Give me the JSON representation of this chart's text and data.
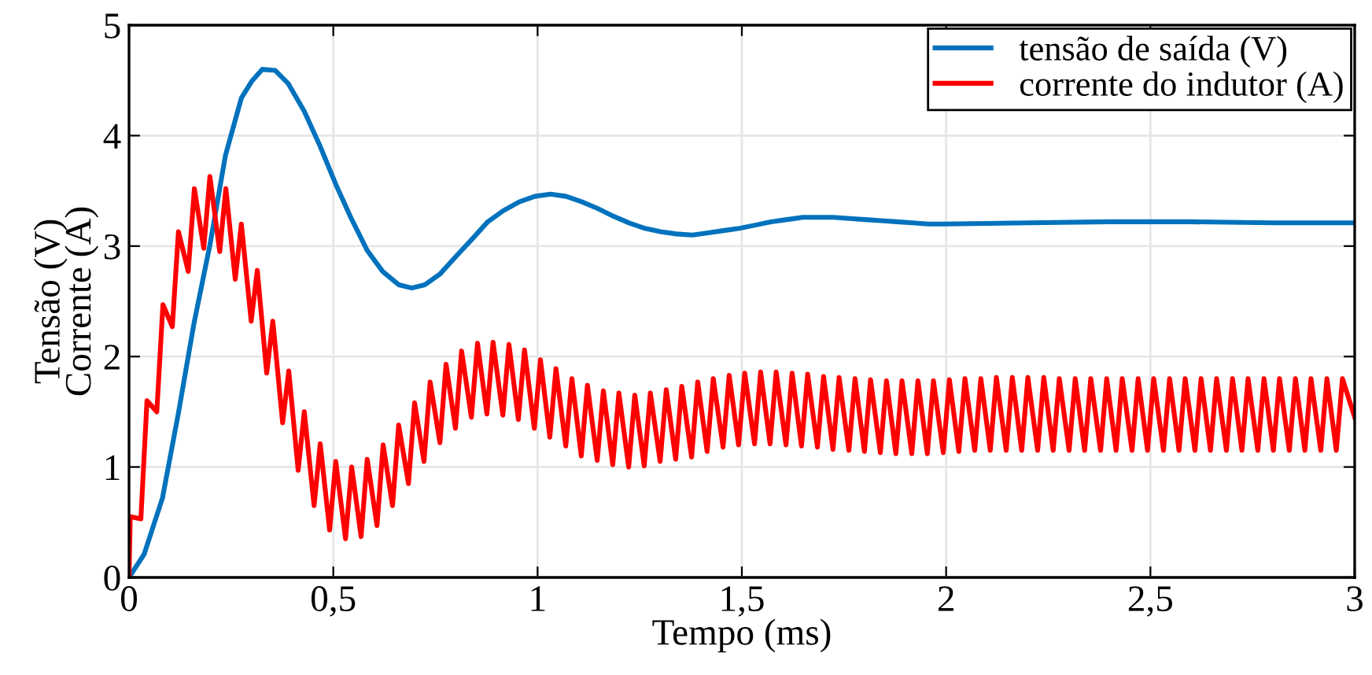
{
  "chart_data": {
    "type": "line",
    "xlabel": "Tempo (ms)",
    "ylabel": "Tensão (V)\nCorrente (A)",
    "xlim": [
      0,
      3
    ],
    "ylim": [
      0,
      5
    ],
    "xticks": [
      0,
      {
        "value": 0.5,
        "label": "0,5"
      },
      1,
      {
        "value": 1.5,
        "label": "1,5"
      },
      2,
      {
        "value": 2.5,
        "label": "2,5"
      },
      3
    ],
    "yticks": [
      0,
      1,
      2,
      3,
      4,
      5
    ],
    "grid": true,
    "legend": "top right",
    "line_style": "solid",
    "marker": "none",
    "series": [
      {
        "name": "tensão de saída (V)",
        "color": "#0072bd",
        "x": [
          0,
          0.037,
          0.082,
          0.121,
          0.159,
          0.198,
          0.236,
          0.275,
          0.3,
          0.326,
          0.358,
          0.39,
          0.429,
          0.467,
          0.506,
          0.544,
          0.583,
          0.621,
          0.66,
          0.692,
          0.724,
          0.762,
          0.801,
          0.839,
          0.878,
          0.916,
          0.955,
          0.993,
          1.032,
          1.07,
          1.109,
          1.147,
          1.186,
          1.224,
          1.263,
          1.301,
          1.34,
          1.379,
          1.417,
          1.455,
          1.494,
          1.533,
          1.571,
          1.61,
          1.648,
          1.687,
          1.725,
          1.764,
          1.802,
          1.841,
          1.879,
          1.918,
          1.956,
          1.995,
          2.2,
          2.4,
          2.6,
          2.8,
          3.0
        ],
        "values": [
          0,
          0.21,
          0.72,
          1.49,
          2.3,
          3.01,
          3.82,
          4.34,
          4.49,
          4.6,
          4.59,
          4.47,
          4.22,
          3.91,
          3.56,
          3.25,
          2.96,
          2.77,
          2.65,
          2.62,
          2.65,
          2.75,
          2.91,
          3.06,
          3.22,
          3.32,
          3.4,
          3.45,
          3.47,
          3.45,
          3.4,
          3.34,
          3.27,
          3.21,
          3.16,
          3.13,
          3.11,
          3.1,
          3.12,
          3.14,
          3.16,
          3.19,
          3.22,
          3.24,
          3.26,
          3.26,
          3.26,
          3.25,
          3.24,
          3.23,
          3.22,
          3.21,
          3.2,
          3.2,
          3.21,
          3.22,
          3.22,
          3.21,
          3.21
        ]
      },
      {
        "name": "corrente do indutor (A)",
        "color": "#ff0000",
        "x": [
          0,
          0.003,
          0.029,
          0.044,
          0.068,
          0.083,
          0.106,
          0.121,
          0.145,
          0.16,
          0.183,
          0.198,
          0.222,
          0.237,
          0.26,
          0.275,
          0.299,
          0.314,
          0.337,
          0.352,
          0.376,
          0.391,
          0.414,
          0.429,
          0.453,
          0.468,
          0.491,
          0.506,
          0.53,
          0.545,
          0.568,
          0.583,
          0.607,
          0.622,
          0.645,
          0.66,
          0.684,
          0.699,
          0.722,
          0.737,
          0.761,
          0.776,
          0.799,
          0.814,
          0.838,
          0.853,
          0.876,
          0.891,
          0.915,
          0.93,
          0.953,
          0.968,
          0.992,
          1.007,
          1.03,
          1.045,
          1.069,
          1.084,
          1.107,
          1.122,
          1.146,
          1.161,
          1.184,
          1.199,
          1.223,
          1.238,
          1.261,
          1.276,
          1.3,
          1.315,
          1.338,
          1.353,
          1.377,
          1.392,
          1.415,
          1.43,
          1.454,
          1.469,
          1.492,
          1.507,
          1.531,
          1.546,
          1.569,
          1.584,
          1.608,
          1.623,
          1.646,
          1.661,
          1.685,
          1.7,
          1.723,
          1.738,
          1.762,
          1.777,
          1.8,
          1.815,
          1.839,
          1.854,
          1.877,
          1.892,
          1.916,
          1.931,
          1.954,
          1.969,
          1.993,
          2.008,
          2.031,
          2.046,
          2.07,
          2.085,
          2.108,
          2.123,
          2.147,
          2.162,
          2.185,
          2.2,
          2.224,
          2.239,
          2.262,
          2.277,
          2.301,
          2.316,
          2.339,
          2.354,
          2.378,
          2.393,
          2.416,
          2.431,
          2.455,
          2.47,
          2.493,
          2.508,
          2.532,
          2.547,
          2.57,
          2.585,
          2.609,
          2.624,
          2.647,
          2.662,
          2.686,
          2.701,
          2.724,
          2.739,
          2.763,
          2.778,
          2.801,
          2.816,
          2.84,
          2.855,
          2.878,
          2.893,
          2.917,
          2.932,
          2.955,
          2.97,
          3.0
        ],
        "values": [
          0,
          0.55,
          0.53,
          1.6,
          1.5,
          2.47,
          2.27,
          3.13,
          2.77,
          3.52,
          2.98,
          3.63,
          2.95,
          3.52,
          2.7,
          3.2,
          2.32,
          2.78,
          1.85,
          2.32,
          1.4,
          1.87,
          0.97,
          1.5,
          0.65,
          1.21,
          0.43,
          1.05,
          0.35,
          1.0,
          0.37,
          1.07,
          0.47,
          1.2,
          0.65,
          1.38,
          0.85,
          1.58,
          1.05,
          1.77,
          1.22,
          1.93,
          1.35,
          2.05,
          1.45,
          2.12,
          1.48,
          2.13,
          1.47,
          2.11,
          1.43,
          2.06,
          1.35,
          1.97,
          1.27,
          1.89,
          1.19,
          1.8,
          1.1,
          1.74,
          1.06,
          1.69,
          1.02,
          1.67,
          1.0,
          1.65,
          1.01,
          1.67,
          1.05,
          1.7,
          1.07,
          1.73,
          1.09,
          1.77,
          1.14,
          1.8,
          1.18,
          1.83,
          1.2,
          1.85,
          1.21,
          1.86,
          1.21,
          1.86,
          1.2,
          1.85,
          1.19,
          1.84,
          1.18,
          1.82,
          1.16,
          1.81,
          1.15,
          1.8,
          1.14,
          1.79,
          1.13,
          1.78,
          1.12,
          1.78,
          1.12,
          1.78,
          1.12,
          1.78,
          1.13,
          1.79,
          1.14,
          1.8,
          1.15,
          1.8,
          1.15,
          1.81,
          1.15,
          1.81,
          1.15,
          1.81,
          1.15,
          1.81,
          1.15,
          1.8,
          1.15,
          1.8,
          1.15,
          1.8,
          1.15,
          1.8,
          1.15,
          1.8,
          1.15,
          1.8,
          1.15,
          1.8,
          1.15,
          1.8,
          1.15,
          1.8,
          1.15,
          1.8,
          1.15,
          1.8,
          1.15,
          1.8,
          1.15,
          1.8,
          1.15,
          1.8,
          1.15,
          1.8,
          1.15,
          1.8,
          1.15,
          1.8,
          1.15,
          1.8,
          1.15,
          1.8,
          1.45
        ]
      }
    ]
  }
}
